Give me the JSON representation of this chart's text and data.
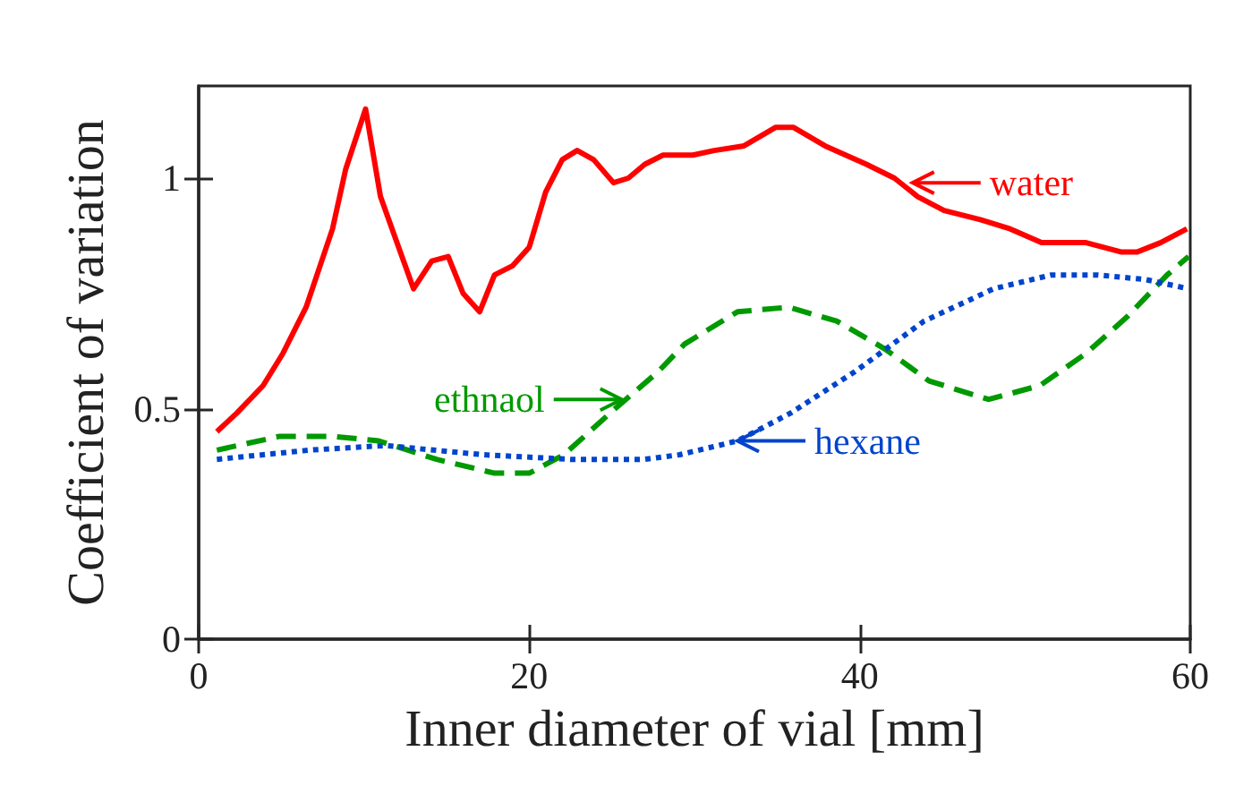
{
  "chart_data": {
    "type": "line",
    "xlabel": "Inner diameter of vial [mm]",
    "ylabel": "Coefficient of variation",
    "xlim": [
      0,
      60
    ],
    "ylim": [
      0,
      1.2
    ],
    "xticks": [
      0,
      20,
      40,
      60
    ],
    "yticks": [
      0,
      0.5,
      1
    ],
    "marker": "none",
    "series": [
      {
        "color": "#ff0000",
        "line_style": "solid",
        "x": [
          1.1,
          2.3,
          3.9,
          5.1,
          6.5,
          8.1,
          8.9,
          10.1,
          11,
          12.1,
          13,
          14.1,
          15.1,
          16,
          17,
          17.9,
          19,
          20,
          21,
          22,
          22.9,
          23.9,
          25.1,
          26,
          27,
          28.1,
          29.9,
          31.2,
          33,
          34.9,
          36,
          37.9,
          40.4,
          42.1,
          43.5,
          45.1,
          47.3,
          49.1,
          51,
          53.7,
          55.8,
          56.8,
          58.2,
          59.8
        ],
        "values": [
          0.45,
          0.49,
          0.55,
          0.62,
          0.72,
          0.89,
          1.02,
          1.15,
          0.96,
          0.85,
          0.76,
          0.82,
          0.83,
          0.75,
          0.71,
          0.79,
          0.81,
          0.85,
          0.97,
          1.04,
          1.06,
          1.04,
          0.99,
          1,
          1.03,
          1.05,
          1.05,
          1.06,
          1.07,
          1.11,
          1.11,
          1.07,
          1.03,
          1,
          0.96,
          0.93,
          0.91,
          0.89,
          0.86,
          0.86,
          0.84,
          0.84,
          0.86,
          0.89
        ]
      },
      {
        "color": "#009900",
        "line_style": "dashed",
        "x": [
          1.1,
          4.9,
          8.1,
          10.9,
          14.4,
          17.9,
          20,
          22.1,
          25.2,
          27.8,
          29.4,
          32.6,
          35.7,
          38.6,
          41.5,
          44.2,
          47.8,
          50.9,
          53.7,
          56.2,
          58.6,
          59.9
        ],
        "values": [
          0.41,
          0.44,
          0.44,
          0.43,
          0.39,
          0.36,
          0.36,
          0.4,
          0.5,
          0.58,
          0.64,
          0.71,
          0.72,
          0.69,
          0.63,
          0.56,
          0.52,
          0.55,
          0.62,
          0.7,
          0.79,
          0.83
        ]
      },
      {
        "color": "#0044cc",
        "line_style": "dotted",
        "x": [
          1.1,
          6.7,
          11.3,
          17.2,
          22.5,
          27,
          29.1,
          32.6,
          35.8,
          39.7,
          43.9,
          48.1,
          51.6,
          54.4,
          57.3,
          59.9
        ],
        "values": [
          0.39,
          0.41,
          0.42,
          0.4,
          0.39,
          0.39,
          0.4,
          0.43,
          0.49,
          0.58,
          0.69,
          0.76,
          0.79,
          0.79,
          0.78,
          0.76
        ]
      }
    ],
    "annotations": [
      {
        "text": "water",
        "x": 43.2,
        "y": 0.99
      },
      {
        "text": "ethnaol",
        "x": 25.6,
        "y": 0.52
      },
      {
        "text": "hexane",
        "x": 32.6,
        "y": 0.43
      }
    ]
  }
}
